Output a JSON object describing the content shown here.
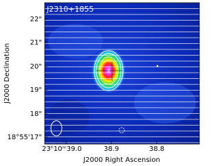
{
  "title": "J2310+1855",
  "y_axis": {
    "label": "J2000 Declination",
    "ticks": [
      "22\"",
      "21\"",
      "20\"",
      "19\"",
      "18\"",
      "18°55'17\""
    ]
  },
  "x_axis": {
    "label": "J2000 Right Ascension",
    "ticks": [
      "23ʰ10ᵐ39.0",
      "38.9",
      "38.8"
    ]
  }
}
